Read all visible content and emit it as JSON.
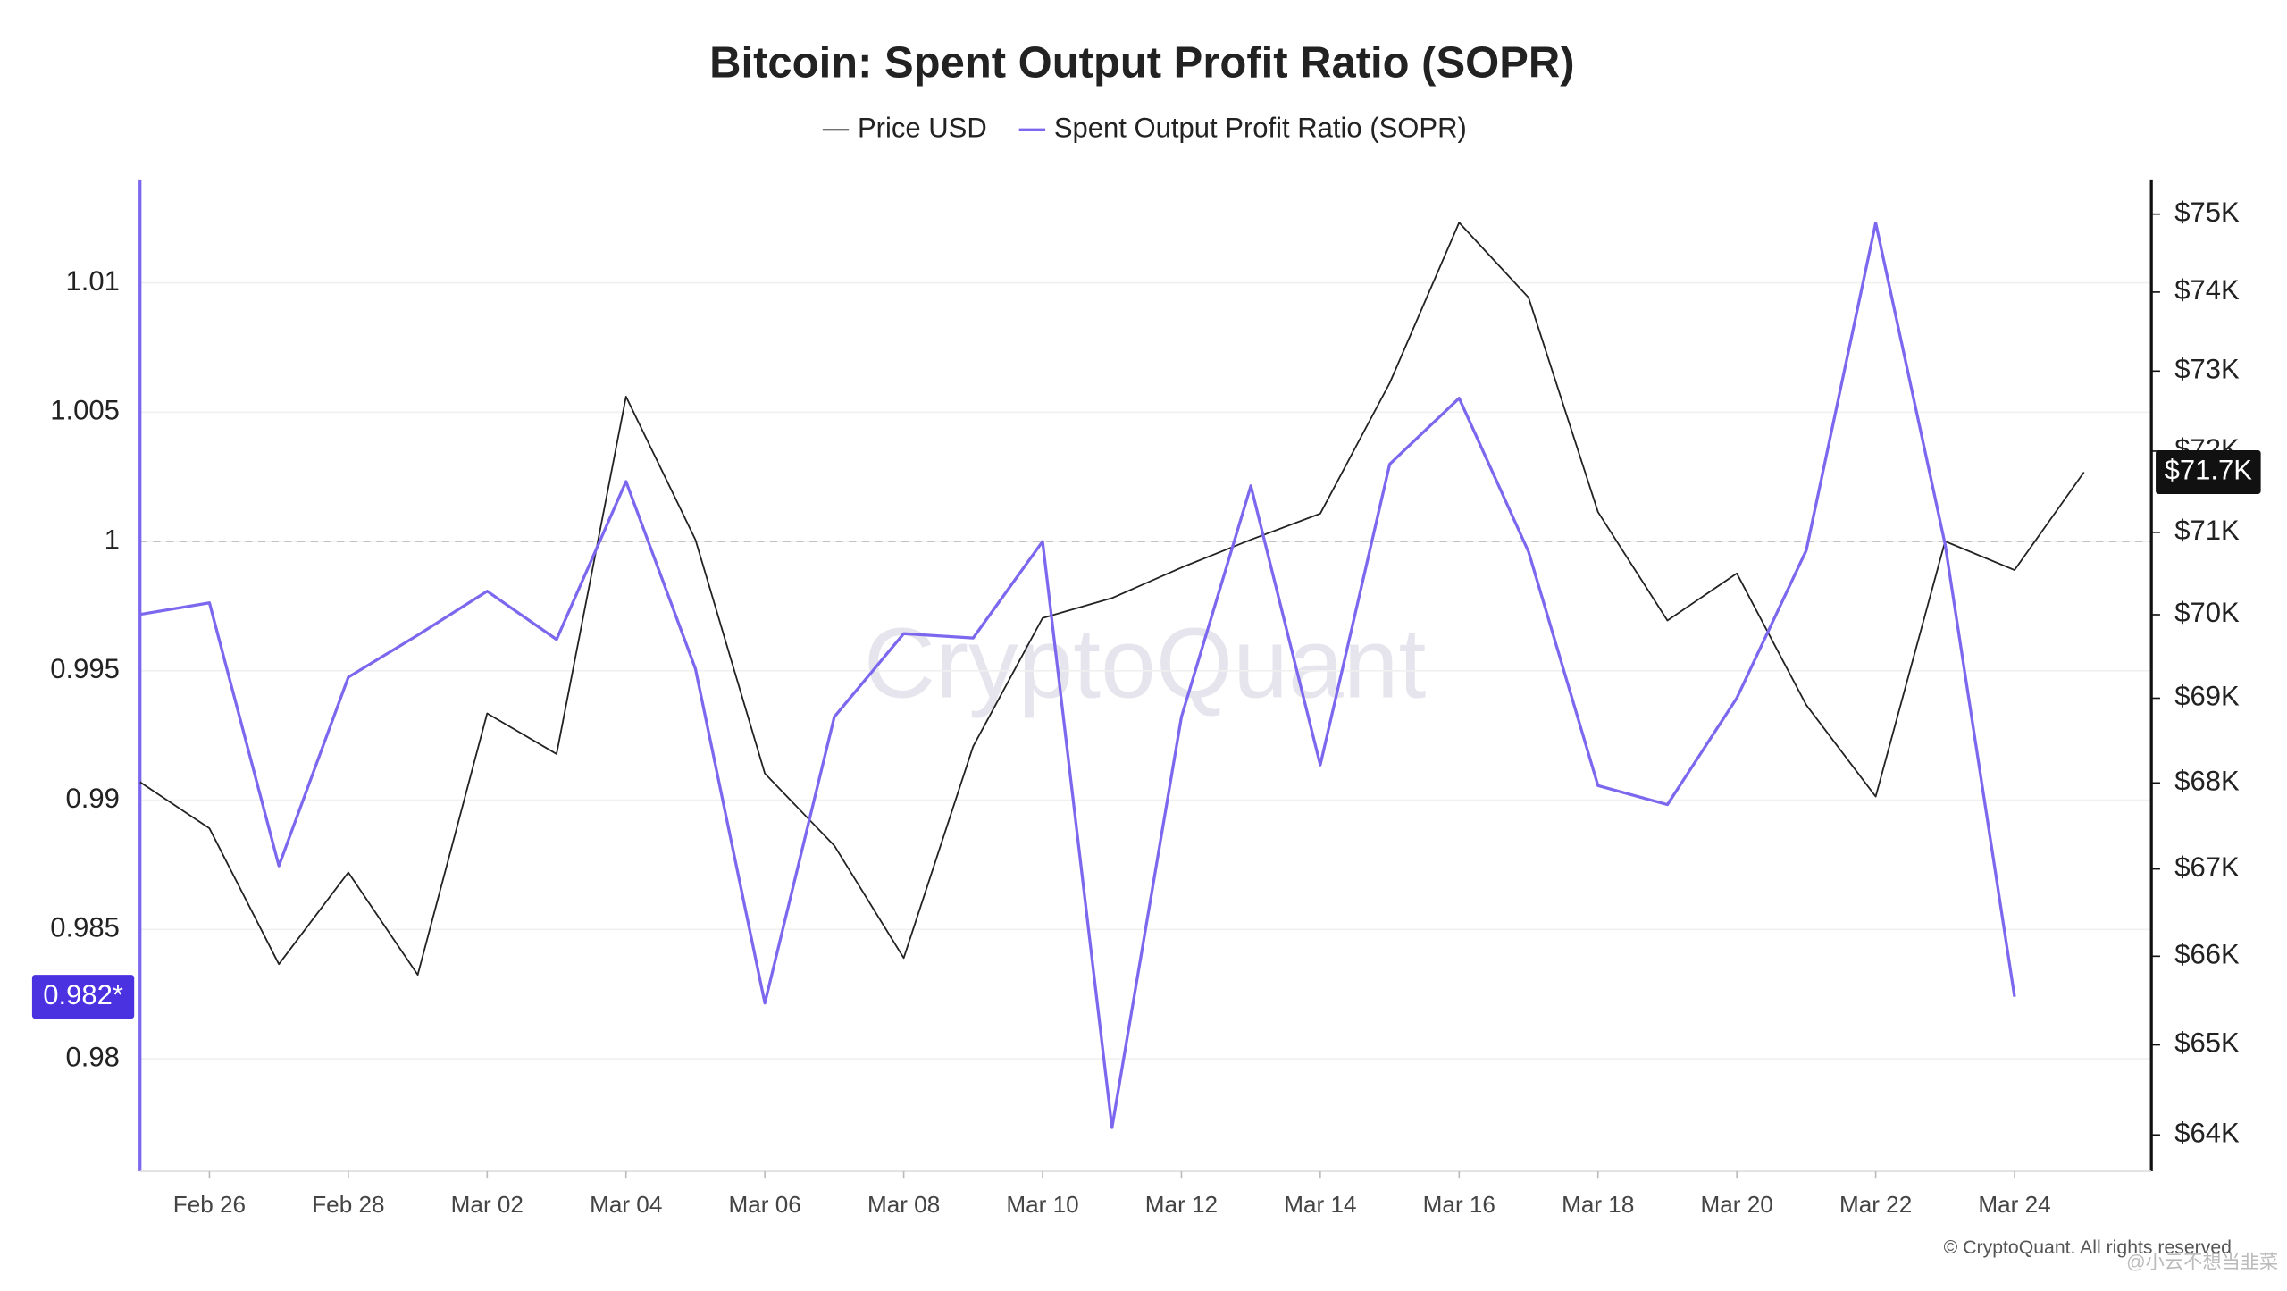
{
  "chart_data": {
    "type": "line",
    "title": "Bitcoin: Spent Output Profit Ratio (SOPR)",
    "categories": [
      null,
      "Feb 26",
      null,
      "Feb 28",
      null,
      "Mar 02",
      null,
      "Mar 04",
      null,
      "Mar 06",
      null,
      "Mar 08",
      null,
      "Mar 10",
      null,
      "Mar 12",
      null,
      "Mar 14",
      null,
      "Mar 16",
      null,
      "Mar 18",
      null,
      "Mar 20",
      null,
      "Mar 22",
      null,
      "Mar 24",
      null
    ],
    "series": [
      {
        "name": "Price USD",
        "color": "#222222",
        "axis": "y2",
        "last_value_label": "$71.7K",
        "values": [
          68010,
          67470,
          65910,
          66960,
          65790,
          68820,
          68340,
          72680,
          70910,
          68110,
          67270,
          65980,
          68430,
          69960,
          70200,
          70570,
          70910,
          71230,
          72850,
          74890,
          73930,
          71250,
          69930,
          70500,
          68920,
          67840,
          70890,
          70540,
          71740
        ]
      },
      {
        "name": "Spent Output Profit Ratio (SOPR)",
        "color": "#7b68ee",
        "axis": "y",
        "last_value_label": "0.982*",
        "values": [
          0.99718,
          0.99763,
          0.98746,
          0.99475,
          0.99638,
          0.99808,
          0.99621,
          1.00232,
          0.99508,
          0.98215,
          0.99322,
          0.99644,
          0.99627,
          1.0,
          0.97734,
          0.99322,
          1.00215,
          0.99136,
          1.00299,
          1.00554,
          0.9996,
          0.99056,
          0.98983,
          0.99395,
          0.99966,
          1.01232,
          0.99989,
          0.9824,
          null
        ]
      }
    ],
    "ylim": [
      0.97565,
      1.014
    ],
    "yticks": [
      0.98,
      0.985,
      0.99,
      0.995,
      1,
      1.005,
      1.01
    ],
    "y2lim": [
      63600,
      75450
    ],
    "y2_log": true,
    "y2ticks": [
      {
        "value": 64000,
        "label": "$64K"
      },
      {
        "value": 65000,
        "label": "$65K"
      },
      {
        "value": 66000,
        "label": "$66K"
      },
      {
        "value": 67000,
        "label": "$67K"
      },
      {
        "value": 68000,
        "label": "$68K"
      },
      {
        "value": 69000,
        "label": "$69K"
      },
      {
        "value": 70000,
        "label": "$70K"
      },
      {
        "value": 71000,
        "label": "$71K"
      },
      {
        "value": 72000,
        "label": "$72K"
      },
      {
        "value": 73000,
        "label": "$73K"
      },
      {
        "value": 74000,
        "label": "$74K"
      },
      {
        "value": 75000,
        "label": "$75K"
      }
    ],
    "reference_line": 1,
    "grid": true,
    "legend": "top",
    "watermark": "CryptoQuant",
    "copyright": "© CryptoQuant. All rights reserved",
    "overlay_text": "@小云不想当韭菜"
  }
}
